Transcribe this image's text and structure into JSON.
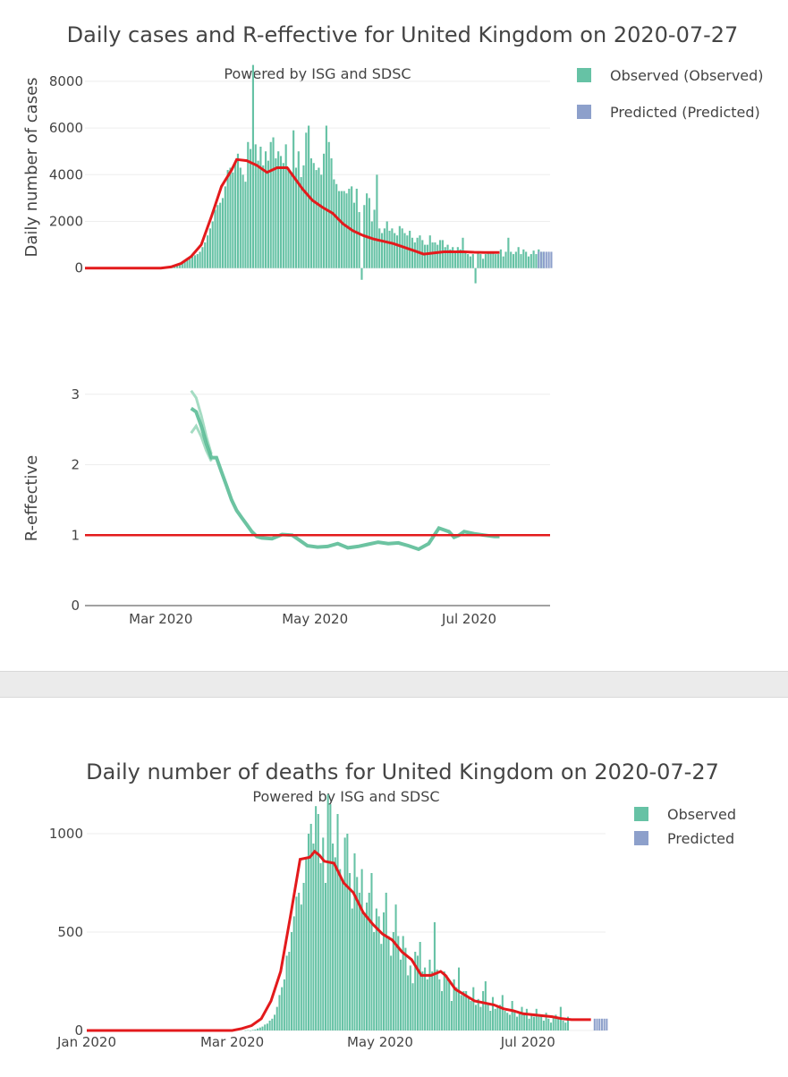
{
  "colors": {
    "observed": "#66c2a5",
    "predicted": "#8da0cb",
    "smooth": "#e31a1c",
    "reff_line": "#52b890",
    "reff_band": "#a5dcc3",
    "threshold": "#e31a1c"
  },
  "chart_data": [
    {
      "id": "cases",
      "type": "bar",
      "title": "Daily cases and R-effective for United Kingdom on 2020-07-27",
      "subtitle": "Powered by ISG and SDSC",
      "ylabel": "Daily number of cases",
      "ylim": [
        -700,
        8800
      ],
      "yticks": [
        0,
        2000,
        4000,
        6000,
        8000
      ],
      "ytick_labels": [
        "0",
        "2000",
        "4000",
        "6000",
        "8000"
      ],
      "x_start": "2020-01-31",
      "x_end": "2020-08-02",
      "legend": [
        "Observed (Observed)",
        "Predicted (Predicted)"
      ],
      "observed_start": "2020-03-01",
      "observed": [
        5,
        10,
        20,
        40,
        60,
        80,
        120,
        150,
        200,
        300,
        350,
        400,
        500,
        550,
        600,
        700,
        900,
        1100,
        1400,
        1700,
        2000,
        2500,
        2700,
        2800,
        3000,
        3500,
        4200,
        4300,
        4100,
        4500,
        4900,
        4300,
        4000,
        3700,
        5400,
        5100,
        8700,
        5300,
        4600,
        5200,
        4400,
        5000,
        4600,
        5400,
        5600,
        4700,
        5000,
        4800,
        4500,
        5300,
        4300,
        4100,
        5900,
        4300,
        5000,
        3900,
        4400,
        5800,
        6100,
        4700,
        4500,
        4200,
        4300,
        4000,
        4900,
        6100,
        5400,
        4700,
        3800,
        3600,
        3300,
        3300,
        3300,
        3200,
        3400,
        3500,
        2800,
        3400,
        2400,
        -500,
        2700,
        3200,
        3000,
        2000,
        2500,
        4000,
        1700,
        1500,
        1700,
        2000,
        1600,
        1700,
        1500,
        1400,
        1800,
        1700,
        1500,
        1400,
        1600,
        1300,
        1100,
        1300,
        1400,
        1200,
        1000,
        1000,
        1400,
        1100,
        1100,
        1000,
        1200,
        1200,
        900,
        1000,
        800,
        900,
        700,
        900,
        800,
        1300,
        700,
        600,
        500,
        600,
        -650,
        700,
        600,
        400,
        600,
        700,
        700,
        700,
        600,
        600,
        800,
        500,
        700,
        1300,
        700,
        600,
        700,
        900,
        600,
        800,
        700,
        500,
        600,
        750,
        600,
        800,
        700,
        700
      ],
      "predicted_start": "2020-07-28",
      "predicted": [
        700,
        700,
        700,
        700,
        700,
        700
      ],
      "smooth": [
        [
          0,
          0
        ],
        [
          30,
          0
        ],
        [
          34,
          50
        ],
        [
          38,
          200
        ],
        [
          42,
          500
        ],
        [
          46,
          1000
        ],
        [
          50,
          2200
        ],
        [
          54,
          3500
        ],
        [
          58,
          4200
        ],
        [
          60,
          4650
        ],
        [
          64,
          4600
        ],
        [
          68,
          4400
        ],
        [
          72,
          4100
        ],
        [
          76,
          4300
        ],
        [
          80,
          4300
        ],
        [
          82,
          4000
        ],
        [
          86,
          3400
        ],
        [
          90,
          2900
        ],
        [
          94,
          2600
        ],
        [
          98,
          2350
        ],
        [
          102,
          1900
        ],
        [
          106,
          1600
        ],
        [
          110,
          1400
        ],
        [
          114,
          1250
        ],
        [
          118,
          1150
        ],
        [
          122,
          1050
        ],
        [
          126,
          900
        ],
        [
          130,
          750
        ],
        [
          134,
          600
        ],
        [
          138,
          650
        ],
        [
          142,
          700
        ],
        [
          150,
          700
        ],
        [
          154,
          680
        ],
        [
          158,
          670
        ],
        [
          164,
          670
        ]
      ]
    },
    {
      "id": "reff",
      "type": "line",
      "ylabel": "R-effective",
      "ylim": [
        0,
        3.2
      ],
      "yticks": [
        0,
        1,
        2,
        3
      ],
      "ytick_labels": [
        "0",
        "1",
        "2",
        "3"
      ],
      "x_start": "2020-01-31",
      "x_end": "2020-08-02",
      "xticks": [
        "2020-03-01",
        "2020-05-01",
        "2020-07-01"
      ],
      "xtick_labels": [
        "Mar 2020",
        "May 2020",
        "Jul 2020"
      ],
      "threshold": 1,
      "median": [
        [
          42,
          2.8
        ],
        [
          44,
          2.75
        ],
        [
          46,
          2.55
        ],
        [
          48,
          2.3
        ],
        [
          50,
          2.1
        ],
        [
          52,
          2.1
        ],
        [
          54,
          1.9
        ],
        [
          56,
          1.7
        ],
        [
          58,
          1.5
        ],
        [
          60,
          1.35
        ],
        [
          62,
          1.25
        ],
        [
          64,
          1.15
        ],
        [
          66,
          1.05
        ],
        [
          68,
          0.98
        ],
        [
          70,
          0.96
        ],
        [
          74,
          0.95
        ],
        [
          78,
          1.01
        ],
        [
          82,
          1.0
        ],
        [
          84,
          0.95
        ],
        [
          88,
          0.85
        ],
        [
          92,
          0.83
        ],
        [
          96,
          0.84
        ],
        [
          100,
          0.88
        ],
        [
          104,
          0.82
        ],
        [
          108,
          0.84
        ],
        [
          112,
          0.87
        ],
        [
          116,
          0.9
        ],
        [
          120,
          0.88
        ],
        [
          124,
          0.89
        ],
        [
          128,
          0.85
        ],
        [
          132,
          0.8
        ],
        [
          136,
          0.88
        ],
        [
          140,
          1.1
        ],
        [
          144,
          1.05
        ],
        [
          146,
          0.97
        ],
        [
          148,
          1.0
        ],
        [
          150,
          1.05
        ],
        [
          154,
          1.02
        ],
        [
          158,
          1.0
        ],
        [
          162,
          0.98
        ],
        [
          164,
          0.98
        ]
      ],
      "upper": [
        [
          42,
          3.05
        ],
        [
          44,
          2.95
        ],
        [
          46,
          2.7
        ],
        [
          48,
          2.4
        ],
        [
          50,
          2.15
        ]
      ],
      "lower": [
        [
          42,
          2.45
        ],
        [
          44,
          2.55
        ],
        [
          46,
          2.4
        ],
        [
          48,
          2.2
        ],
        [
          50,
          2.05
        ]
      ]
    },
    {
      "id": "deaths",
      "type": "bar",
      "title": "Daily number of deaths for United Kingdom on 2020-07-27",
      "subtitle": "Powered by ISG and SDSC",
      "ylim": [
        0,
        1200
      ],
      "yticks": [
        0,
        500,
        1000
      ],
      "ytick_labels": [
        "0",
        "500",
        "1000"
      ],
      "x_start": "2020-01-01",
      "x_end": "2020-08-02",
      "xticks": [
        "2020-01-01",
        "2020-03-01",
        "2020-05-01",
        "2020-07-01"
      ],
      "xtick_labels": [
        "Jan 2020",
        "Mar 2020",
        "May 2020",
        "Jul 2020"
      ],
      "legend": [
        "Observed",
        "Predicted"
      ],
      "observed_start": "2020-03-06",
      "observed": [
        1,
        2,
        0,
        3,
        5,
        10,
        15,
        20,
        30,
        35,
        50,
        60,
        80,
        120,
        180,
        220,
        260,
        380,
        400,
        500,
        580,
        680,
        700,
        640,
        750,
        880,
        1000,
        1050,
        950,
        1140,
        1100,
        850,
        980,
        750,
        1200,
        1150,
        950,
        880,
        1100,
        820,
        760,
        980,
        1000,
        800,
        620,
        900,
        780,
        700,
        820,
        600,
        650,
        700,
        800,
        500,
        620,
        580,
        440,
        600,
        700,
        480,
        380,
        500,
        640,
        480,
        360,
        480,
        420,
        280,
        330,
        240,
        400,
        380,
        450,
        300,
        320,
        260,
        360,
        300,
        550,
        310,
        260,
        200,
        300,
        280,
        250,
        150,
        260,
        220,
        320,
        180,
        200,
        200,
        170,
        150,
        220,
        130,
        160,
        120,
        200,
        250,
        140,
        100,
        170,
        110,
        120,
        130,
        180,
        100,
        90,
        80,
        150,
        100,
        70,
        90,
        120,
        80,
        110,
        60,
        80,
        70,
        110,
        70,
        80,
        50,
        90,
        60,
        40,
        70,
        80,
        60,
        120,
        50,
        40,
        70
      ],
      "predicted_start": "2020-07-28",
      "predicted": [
        60,
        60,
        60,
        60,
        60,
        60
      ],
      "smooth": [
        [
          0,
          0
        ],
        [
          60,
          0
        ],
        [
          64,
          10
        ],
        [
          68,
          25
        ],
        [
          72,
          60
        ],
        [
          76,
          150
        ],
        [
          80,
          300
        ],
        [
          84,
          580
        ],
        [
          88,
          870
        ],
        [
          92,
          880
        ],
        [
          94,
          910
        ],
        [
          96,
          890
        ],
        [
          98,
          860
        ],
        [
          102,
          850
        ],
        [
          106,
          750
        ],
        [
          110,
          700
        ],
        [
          114,
          600
        ],
        [
          118,
          540
        ],
        [
          122,
          490
        ],
        [
          126,
          460
        ],
        [
          130,
          400
        ],
        [
          134,
          360
        ],
        [
          138,
          280
        ],
        [
          142,
          280
        ],
        [
          146,
          300
        ],
        [
          148,
          280
        ],
        [
          152,
          210
        ],
        [
          156,
          180
        ],
        [
          160,
          150
        ],
        [
          164,
          140
        ],
        [
          168,
          130
        ],
        [
          172,
          110
        ],
        [
          176,
          100
        ],
        [
          180,
          85
        ],
        [
          184,
          80
        ],
        [
          188,
          75
        ],
        [
          192,
          70
        ],
        [
          196,
          60
        ],
        [
          200,
          55
        ],
        [
          204,
          55
        ],
        [
          208,
          55
        ]
      ]
    }
  ]
}
